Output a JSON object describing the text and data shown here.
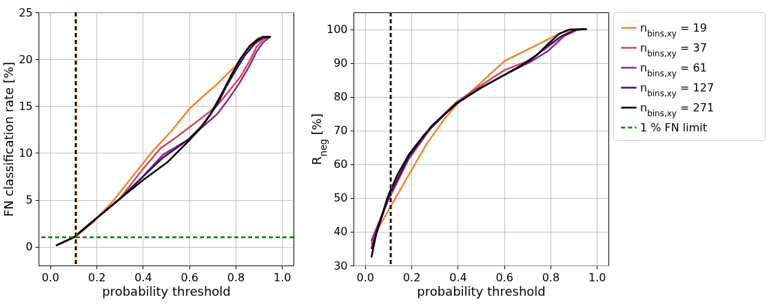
{
  "chart_data": [
    {
      "type": "line",
      "xlabel": "probability threshold",
      "ylabel": "FN classification rate [%]",
      "xlim": [
        -0.05,
        1.05
      ],
      "ylim": [
        -2,
        25
      ],
      "xticks": [
        {
          "value": 0,
          "label": "0.0"
        },
        {
          "value": 0.2,
          "label": "0.2"
        },
        {
          "value": 0.4,
          "label": "0.4"
        },
        {
          "value": 0.6,
          "label": "0.6"
        },
        {
          "value": 0.8,
          "label": "0.8"
        },
        {
          "value": 1,
          "label": "1.0"
        }
      ],
      "yticks": [
        0,
        5,
        10,
        15,
        20,
        25
      ],
      "grid": true,
      "line_style": "solid",
      "legend": "right",
      "series": [
        {
          "name": "n$_{bins,xy}$ = 19",
          "color": "#f7832b",
          "x": [
            0.028,
            0.106,
            0.19,
            0.279,
            0.358,
            0.446,
            0.525,
            0.604,
            0.663,
            0.722,
            0.771,
            0.801,
            0.83,
            0.87,
            0.9,
            0.949
          ],
          "values": [
            0.15,
            1.0,
            2.7,
            5.1,
            7.6,
            10.3,
            12.4,
            14.8,
            16.1,
            17.4,
            18.6,
            19.3,
            20.4,
            21.6,
            22.3,
            22.4
          ]
        },
        {
          "name": "n$_{bins,xy}$ = 37",
          "color": "#cc4a5e",
          "x": [
            0.028,
            0.106,
            0.2,
            0.3,
            0.397,
            0.476,
            0.545,
            0.604,
            0.683,
            0.732,
            0.781,
            0.82,
            0.86,
            0.89,
            0.919,
            0.949
          ],
          "values": [
            0.15,
            1.08,
            3.04,
            5.1,
            8.2,
            10.5,
            11.7,
            12.8,
            14.3,
            15.4,
            16.9,
            18.1,
            19.8,
            21.3,
            22.1,
            22.4
          ]
        },
        {
          "name": "n$_{bins,xy}$ = 61",
          "color": "#8f2a80",
          "x": [
            0.028,
            0.106,
            0.2,
            0.3,
            0.397,
            0.486,
            0.594,
            0.663,
            0.722,
            0.771,
            0.82,
            0.86,
            0.89,
            0.919,
            0.949
          ],
          "values": [
            0.15,
            1.08,
            3.04,
            5.1,
            7.4,
            9.8,
            11.4,
            12.9,
            14.2,
            15.8,
            17.6,
            19.3,
            20.8,
            21.8,
            22.4
          ]
        },
        {
          "name": "n$_{bins,xy}$ = 127",
          "color": "#3a0e6b",
          "x": [
            0.028,
            0.106,
            0.2,
            0.3,
            0.397,
            0.486,
            0.594,
            0.663,
            0.722,
            0.76,
            0.8,
            0.84,
            0.88,
            0.919,
            0.949
          ],
          "values": [
            0.15,
            1.08,
            3.04,
            5.1,
            7.4,
            9.5,
            11.4,
            13.1,
            15.2,
            17.1,
            18.8,
            20.4,
            21.6,
            22.3,
            22.4
          ]
        },
        {
          "name": "n$_{bins,xy}$ = 271",
          "color": "#000000",
          "x": [
            0.028,
            0.106,
            0.2,
            0.3,
            0.4,
            0.505,
            0.594,
            0.643,
            0.693,
            0.742,
            0.781,
            0.82,
            0.86,
            0.895,
            0.919,
            0.949
          ],
          "values": [
            0.15,
            1.08,
            3.04,
            5.1,
            7.1,
            9.0,
            11.2,
            12.5,
            14.2,
            16.4,
            18.3,
            20.0,
            21.4,
            22.1,
            22.4,
            22.4
          ]
        }
      ],
      "ref_lines": [
        {
          "axis": "y",
          "value": 1,
          "label": "1 % FN limit",
          "color": "#008000",
          "line_style": "dashed"
        },
        {
          "axis": "x",
          "value": 0.113,
          "color": "#f7832b",
          "line_style": "dashed"
        },
        {
          "axis": "x",
          "value": 0.11,
          "color": "#000000",
          "line_style": "dashed"
        }
      ]
    },
    {
      "type": "line",
      "xlabel": "probability threshold",
      "ylabel": "R$_{neg}$ [%]",
      "xlim": [
        -0.05,
        1.05
      ],
      "ylim": [
        30,
        105
      ],
      "xticks": [
        {
          "value": 0,
          "label": "0.0"
        },
        {
          "value": 0.2,
          "label": "0.2"
        },
        {
          "value": 0.4,
          "label": "0.4"
        },
        {
          "value": 0.6,
          "label": "0.6"
        },
        {
          "value": 0.8,
          "label": "0.8"
        },
        {
          "value": 1,
          "label": "1.0"
        }
      ],
      "yticks": [
        30,
        40,
        50,
        60,
        70,
        80,
        90,
        100
      ],
      "grid": true,
      "line_style": "solid",
      "legend": "right",
      "series": [
        {
          "name": "n$_{bins,xy}$ = 19",
          "color": "#f7832b",
          "x": [
            0.028,
            0.069,
            0.109,
            0.188,
            0.267,
            0.346,
            0.405,
            0.494,
            0.602,
            0.681,
            0.76,
            0.829,
            0.888,
            0.953
          ],
          "values": [
            37.1,
            42.5,
            47.3,
            56.8,
            66.2,
            73.7,
            78.4,
            83.8,
            90.6,
            93.3,
            96.0,
            98.4,
            99.9,
            100
          ]
        },
        {
          "name": "n$_{bins,xy}$ = 37",
          "color": "#cc4a5e",
          "x": [
            0.028,
            0.099,
            0.188,
            0.286,
            0.395,
            0.494,
            0.602,
            0.701,
            0.78,
            0.849,
            0.898,
            0.953
          ],
          "values": [
            36.5,
            49.3,
            61.5,
            70.9,
            78.4,
            83.1,
            87.9,
            90.6,
            94.3,
            98.0,
            99.7,
            100
          ]
        },
        {
          "name": "n$_{bins,xy}$ = 61",
          "color": "#8f2a80",
          "x": [
            0.028,
            0.099,
            0.188,
            0.286,
            0.395,
            0.494,
            0.602,
            0.72,
            0.79,
            0.859,
            0.918,
            0.953
          ],
          "values": [
            37.5,
            49.3,
            61.8,
            71.3,
            78.4,
            82.5,
            86.5,
            90.6,
            93.6,
            98.0,
            99.9,
            100
          ]
        },
        {
          "name": "n$_{bins,xy}$ = 127",
          "color": "#3a0e6b",
          "x": [
            0.028,
            0.099,
            0.188,
            0.286,
            0.395,
            0.494,
            0.602,
            0.711,
            0.78,
            0.849,
            0.908,
            0.953
          ],
          "values": [
            35.1,
            50.0,
            62.2,
            71.3,
            78.0,
            82.4,
            86.5,
            90.6,
            94.7,
            98.0,
            99.9,
            100
          ]
        },
        {
          "name": "n$_{bins,xy}$ = 271",
          "color": "#000000",
          "x": [
            0.028,
            0.049,
            0.099,
            0.138,
            0.188,
            0.257,
            0.336,
            0.395,
            0.494,
            0.602,
            0.681,
            0.74,
            0.79,
            0.839,
            0.879,
            0.953
          ],
          "values": [
            32.6,
            39.7,
            50.6,
            56.7,
            62.8,
            68.9,
            74.3,
            78.0,
            82.4,
            86.5,
            89.6,
            92.3,
            95.7,
            98.7,
            99.9,
            100
          ]
        }
      ],
      "ref_lines": [
        {
          "axis": "x",
          "value": 0.113,
          "color": "#f7832b",
          "line_style": "dashed"
        },
        {
          "axis": "x",
          "value": 0.11,
          "color": "#000000",
          "line_style": "dashed"
        }
      ]
    }
  ]
}
